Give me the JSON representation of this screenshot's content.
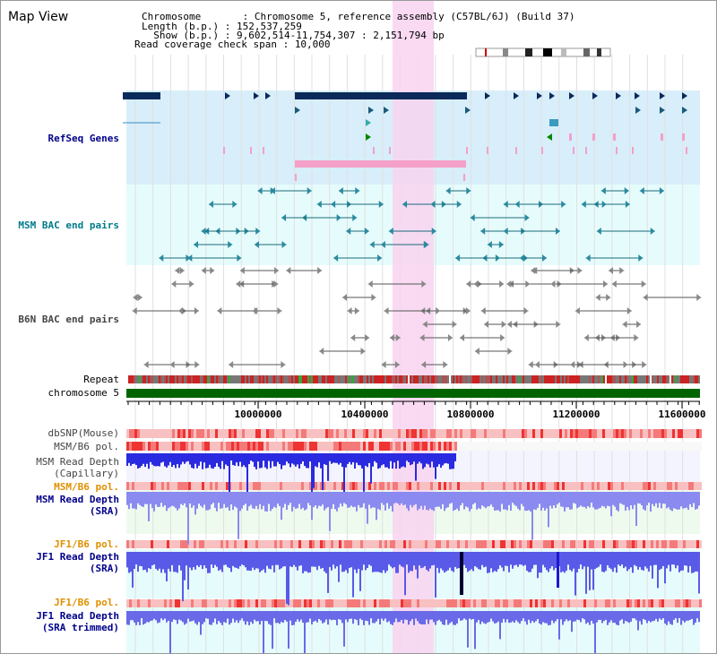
{
  "title": "Map View",
  "header": {
    "chromosome_label": "Chromosome       : ",
    "chromosome": "Chromosome 5, reference assembly (C57BL/6J) (Build 37)",
    "length_label": "Length (b.p.) : ",
    "length": "152,537,259",
    "show_label": "  Show (b.p.) : ",
    "show": "9,602,514-11,754,307 : 2,151,794 bp",
    "coverage_label": "Read coverage check span : ",
    "coverage": "10,000"
  },
  "tracks": {
    "refseq": "RefSeq Genes",
    "msm_bac": "MSM BAC end pairs",
    "b6n_bac": "B6N BAC end pairs",
    "repeat": "Repeat",
    "chromosome": "chromosome 5",
    "dbsnp": "dbSNP(Mouse)",
    "msm_b6_pol_1": "MSM/B6 pol.",
    "msm_read_depth_cap": "MSM Read Depth\n(Capillary)",
    "msm_b6_pol_2": "MSM/B6 pol.",
    "msm_read_depth_sra": "MSM Read Depth\n(SRA)",
    "jf1_b6_pol_1": "JF1/B6 pol.",
    "jf1_read_depth_sra": "JF1 Read Depth\n(SRA)",
    "jf1_b6_pol_2": "JF1/B6 pol.",
    "jf1_read_depth_trimmed": "JF1 Read Depth\n(SRA trimmed)"
  },
  "axis_ticks": [
    "10000000",
    "10400000",
    "10800000",
    "11200000",
    "11600000"
  ],
  "colors": {
    "refseq_bg": "#d8eefa",
    "bac_bg": "#e6fcfc",
    "highlight": "#f8d4f0",
    "gene_dark": "#0b2a5a",
    "gene_pink": "#f4a0c8",
    "chrom_green": "#006400",
    "depth_blue": "#3333ee",
    "pol_red": "#ee3333",
    "pol_pink": "#f8c0c0"
  }
}
